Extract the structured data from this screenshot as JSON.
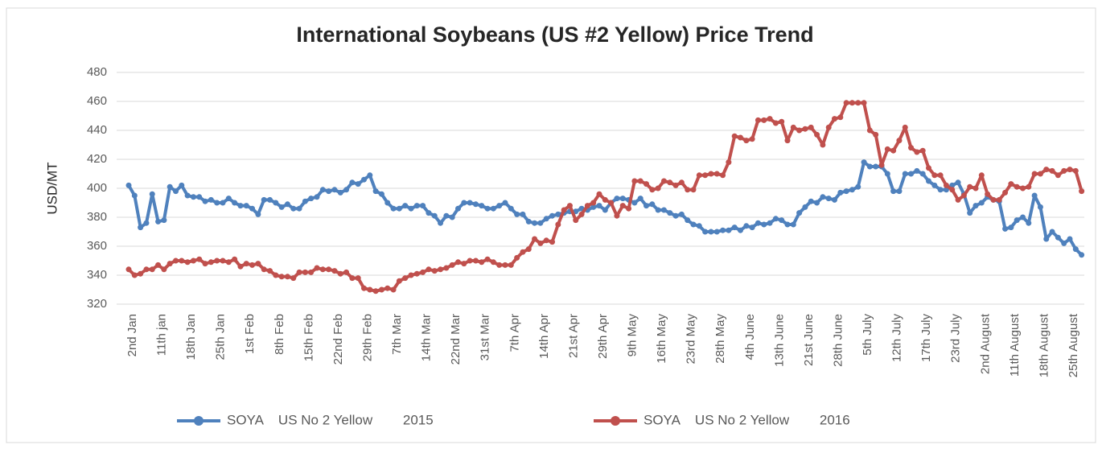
{
  "chart_data": {
    "type": "line",
    "title": "International Soybeans (US #2 Yellow) Price Trend",
    "y_label": "USD/MT",
    "categories": [
      "2nd Jan",
      null,
      null,
      null,
      null,
      "11th jan",
      null,
      null,
      null,
      null,
      "18th Jan",
      null,
      null,
      null,
      null,
      "25th Jan",
      null,
      null,
      null,
      null,
      "1st Feb",
      null,
      null,
      null,
      null,
      "8th Feb",
      null,
      null,
      null,
      null,
      "15th Feb",
      null,
      null,
      null,
      null,
      "22nd Feb",
      null,
      null,
      null,
      null,
      "29th Feb",
      null,
      null,
      null,
      null,
      "7th Mar",
      null,
      null,
      null,
      null,
      "14th Mar",
      null,
      null,
      null,
      null,
      "22nd Mar",
      null,
      null,
      null,
      null,
      "31st Mar",
      null,
      null,
      null,
      null,
      "7th Apr",
      null,
      null,
      null,
      null,
      "14th Apr",
      null,
      null,
      null,
      null,
      "21st Apr",
      null,
      null,
      null,
      null,
      "29th Apr",
      null,
      null,
      null,
      null,
      "9th May",
      null,
      null,
      null,
      null,
      "16th May",
      null,
      null,
      null,
      null,
      "23rd May",
      null,
      null,
      null,
      null,
      "28th May",
      null,
      null,
      null,
      null,
      "4th June",
      null,
      null,
      null,
      null,
      "13th June",
      null,
      null,
      null,
      null,
      "21st June",
      null,
      null,
      null,
      null,
      "28th June",
      null,
      null,
      null,
      null,
      "5th July",
      null,
      null,
      null,
      null,
      "12th July",
      null,
      null,
      null,
      null,
      "17th July",
      null,
      null,
      null,
      null,
      "23rd July",
      null,
      null,
      null,
      null,
      "2nd August",
      null,
      null,
      null,
      null,
      "11th August",
      null,
      null,
      null,
      null,
      "18th August",
      null,
      null,
      null,
      null,
      "25th August",
      null,
      null
    ],
    "series": [
      {
        "name": "SOYA    US No 2 Yellow        2015",
        "color": "#4f81bd",
        "values": [
          402,
          395,
          373,
          376,
          396,
          377,
          378,
          401,
          398,
          402,
          395,
          394,
          394,
          391,
          392,
          390,
          390,
          393,
          390,
          388,
          388,
          386,
          382,
          392,
          392,
          390,
          387,
          389,
          386,
          386,
          391,
          393,
          394,
          399,
          398,
          399,
          397,
          399,
          404,
          403,
          406,
          409,
          398,
          396,
          390,
          386,
          386,
          388,
          386,
          388,
          388,
          383,
          381,
          376,
          381,
          380,
          386,
          390,
          390,
          389,
          388,
          386,
          386,
          388,
          390,
          386,
          382,
          382,
          377,
          376,
          376,
          379,
          381,
          382,
          383,
          384,
          384,
          386,
          385,
          387,
          388,
          385,
          390,
          393,
          393,
          392,
          390,
          393,
          388,
          389,
          385,
          385,
          383,
          381,
          382,
          378,
          375,
          374,
          370,
          370,
          370,
          371,
          371,
          373,
          371,
          374,
          373,
          376,
          375,
          376,
          379,
          378,
          375,
          375,
          383,
          387,
          391,
          390,
          394,
          393,
          392,
          397,
          398,
          399,
          401,
          418,
          415,
          415,
          415,
          410,
          398,
          398,
          410,
          410,
          412,
          410,
          405,
          402,
          399,
          399,
          402,
          404,
          396,
          383,
          388,
          390,
          394,
          392,
          391,
          372,
          373,
          378,
          380,
          376,
          395,
          387,
          365,
          370,
          366,
          362,
          365,
          358,
          354
        ]
      },
      {
        "name": "SOYA    US No 2 Yellow        2016",
        "color": "#c0504d",
        "values": [
          344,
          340,
          341,
          344,
          344,
          347,
          344,
          348,
          350,
          350,
          349,
          350,
          351,
          348,
          349,
          350,
          350,
          349,
          351,
          346,
          348,
          347,
          348,
          344,
          343,
          340,
          339,
          339,
          338,
          342,
          342,
          342,
          345,
          344,
          344,
          343,
          341,
          342,
          338,
          338,
          331,
          330,
          329,
          330,
          331,
          330,
          336,
          338,
          340,
          341,
          342,
          344,
          343,
          344,
          345,
          347,
          349,
          348,
          350,
          350,
          349,
          351,
          349,
          347,
          347,
          347,
          352,
          356,
          358,
          365,
          362,
          364,
          363,
          375,
          385,
          388,
          378,
          382,
          388,
          390,
          396,
          392,
          390,
          381,
          388,
          386,
          405,
          405,
          403,
          399,
          400,
          405,
          404,
          402,
          404,
          399,
          399,
          409,
          409,
          410,
          410,
          409,
          418,
          436,
          435,
          433,
          434,
          447,
          447,
          448,
          445,
          446,
          433,
          442,
          440,
          441,
          442,
          437,
          430,
          442,
          448,
          449,
          459,
          459,
          459,
          459,
          440,
          437,
          416,
          427,
          426,
          433,
          442,
          428,
          425,
          426,
          414,
          409,
          409,
          402,
          399,
          392,
          395,
          401,
          400,
          409,
          396,
          392,
          392,
          397,
          403,
          401,
          400,
          401,
          410,
          410,
          413,
          412,
          409,
          412,
          413,
          412,
          398
        ]
      }
    ],
    "ylim": [
      320,
      480
    ],
    "yticks": [
      320,
      340,
      360,
      380,
      400,
      420,
      440,
      460,
      480
    ],
    "grid": true,
    "legend": "bottom"
  }
}
